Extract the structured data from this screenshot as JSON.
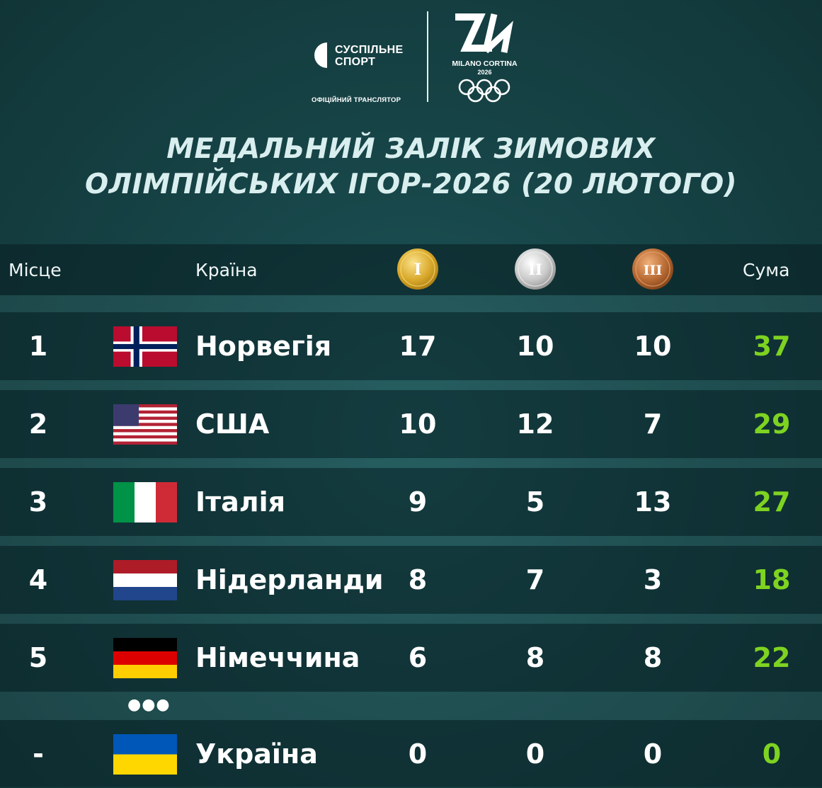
{
  "header": {
    "broadcaster": {
      "line1": "СУСПІЛЬНЕ",
      "line2": "СПОРТ",
      "subtitle": "ОФІЦІЙНИЙ ТРАНСЛЯТОР",
      "logo_icon": "suspilne-logo-icon"
    },
    "games": {
      "name": "MILANO CORTINA",
      "year": "2026",
      "emblem_icon": "milano-cortina-emblem-icon",
      "rings_icon": "olympic-rings-icon"
    }
  },
  "title": {
    "line1": "МЕДАЛЬНИЙ ЗАЛІК ЗИМОВИХ",
    "line2": "ОЛІМПІЙСЬКИХ ІГОР-2026 (20 ЛЮТОГО)"
  },
  "columns": {
    "place": "Місце",
    "country": "Країна",
    "gold": "I",
    "silver": "II",
    "bronze": "III",
    "total": "Сума"
  },
  "colors": {
    "gold": "#d4a325",
    "silver": "#c8c8c8",
    "bronze": "#b5652f",
    "total": "#7ed321"
  },
  "rows": [
    {
      "place": "1",
      "country": "Норвегія",
      "flag": "norway-flag",
      "gold": "17",
      "silver": "10",
      "bronze": "10",
      "total": "37"
    },
    {
      "place": "2",
      "country": "США",
      "flag": "usa-flag",
      "gold": "10",
      "silver": "12",
      "bronze": "7",
      "total": "29"
    },
    {
      "place": "3",
      "country": "Італія",
      "flag": "italy-flag",
      "gold": "9",
      "silver": "5",
      "bronze": "13",
      "total": "27"
    },
    {
      "place": "4",
      "country": "Нідерланди",
      "flag": "netherlands-flag",
      "gold": "8",
      "silver": "7",
      "bronze": "3",
      "total": "18"
    },
    {
      "place": "5",
      "country": "Німеччина",
      "flag": "germany-flag",
      "gold": "6",
      "silver": "8",
      "bronze": "8",
      "total": "22"
    },
    {
      "place": "-",
      "country": "Україна",
      "flag": "ukraine-flag",
      "gold": "0",
      "silver": "0",
      "bronze": "0",
      "total": "0"
    }
  ],
  "ellipsis": "●●●"
}
